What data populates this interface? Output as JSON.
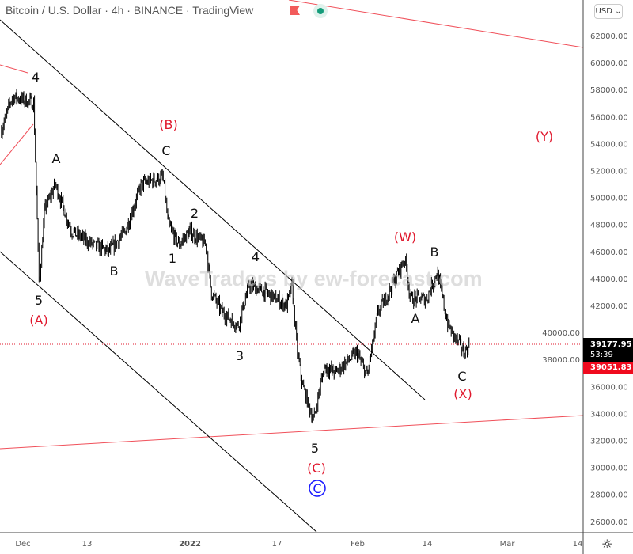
{
  "header": {
    "title": "Bitcoin / U.S. Dollar · 4h · BINANCE · TradingView",
    "currency": "USD ⌄",
    "flag_icon": "flag-icon",
    "status_icon": "live-dot-icon"
  },
  "watermark": "WaveTraders by ew-forecast.com",
  "price_labels": {
    "last": "39177.95",
    "countdown": "53:39",
    "reference": "39051.83"
  },
  "colors": {
    "up": "#000000",
    "label_red": "#e0182d",
    "trendline_red": "#f0505a",
    "channel": "#000000",
    "circled": "#1a1aff"
  },
  "chart_data": {
    "type": "candlestick",
    "y_ticks": [
      "26000.00",
      "28000.00",
      "30000.00",
      "32000.00",
      "34000.00",
      "36000.00",
      "38000.00",
      "40000.00",
      "42000.00",
      "44000.00",
      "46000.00",
      "48000.00",
      "50000.00",
      "52000.00",
      "54000.00",
      "56000.00",
      "58000.00",
      "60000.00",
      "62000.00"
    ],
    "ylim": [
      25000,
      64000
    ],
    "x_ticks": [
      "Dec",
      "13",
      "2022",
      "17",
      "Feb",
      "14",
      "Mar",
      "14"
    ],
    "price_path": [
      [
        "2021-11-27",
        55000
      ],
      [
        "2021-11-29",
        57500
      ],
      [
        "2021-12-03",
        57000
      ],
      [
        "2021-12-04",
        43500
      ],
      [
        "2021-12-05",
        49000
      ],
      [
        "2021-12-07",
        51000
      ],
      [
        "2021-12-10",
        47500
      ],
      [
        "2021-12-14",
        46500
      ],
      [
        "2021-12-17",
        46000
      ],
      [
        "2021-12-20",
        47500
      ],
      [
        "2021-12-23",
        51000
      ],
      [
        "2021-12-27",
        51500
      ],
      [
        "2021-12-28",
        48000
      ],
      [
        "2021-12-30",
        46500
      ],
      [
        "2022-01-01",
        47500
      ],
      [
        "2022-01-04",
        46500
      ],
      [
        "2022-01-05",
        43000
      ],
      [
        "2022-01-07",
        41500
      ],
      [
        "2022-01-10",
        40500
      ],
      [
        "2022-01-12",
        43500
      ],
      [
        "2022-01-15",
        43000
      ],
      [
        "2022-01-19",
        42000
      ],
      [
        "2022-01-20",
        43500
      ],
      [
        "2022-01-21",
        38500
      ],
      [
        "2022-01-22",
        36000
      ],
      [
        "2022-01-24",
        33500
      ],
      [
        "2022-01-26",
        37500
      ],
      [
        "2022-01-28",
        37000
      ],
      [
        "2022-02-01",
        38500
      ],
      [
        "2022-02-03",
        36800
      ],
      [
        "2022-02-05",
        41500
      ],
      [
        "2022-02-07",
        43000
      ],
      [
        "2022-02-10",
        45500
      ],
      [
        "2022-02-11",
        42500
      ],
      [
        "2022-02-14",
        42500
      ],
      [
        "2022-02-16",
        44500
      ],
      [
        "2022-02-18",
        40500
      ],
      [
        "2022-02-21",
        38500
      ],
      [
        "2022-02-22",
        39200
      ]
    ],
    "wave_labels": [
      {
        "text": "4",
        "color": "black"
      },
      {
        "text": "5",
        "color": "black"
      },
      {
        "text": "(A)",
        "color": "red"
      },
      {
        "text": "A",
        "color": "black"
      },
      {
        "text": "B",
        "color": "black"
      },
      {
        "text": "(B)",
        "color": "red"
      },
      {
        "text": "C",
        "color": "black"
      },
      {
        "text": "1",
        "color": "black"
      },
      {
        "text": "2",
        "color": "black"
      },
      {
        "text": "3",
        "color": "black"
      },
      {
        "text": "4",
        "color": "black"
      },
      {
        "text": "5",
        "color": "black"
      },
      {
        "text": "(C)",
        "color": "red"
      },
      {
        "text": "C",
        "color": "blue"
      },
      {
        "text": "(W)",
        "color": "red"
      },
      {
        "text": "A",
        "color": "black"
      },
      {
        "text": "B",
        "color": "black"
      },
      {
        "text": "C",
        "color": "black"
      },
      {
        "text": "(X)",
        "color": "red"
      },
      {
        "text": "(Y)",
        "color": "red"
      }
    ],
    "last_price": 39177.95
  }
}
